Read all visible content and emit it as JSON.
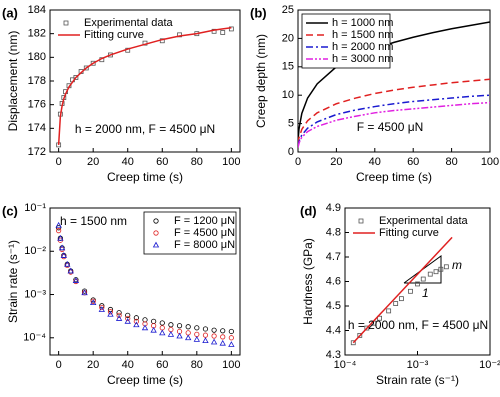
{
  "chart_data": [
    {
      "type": "line",
      "panel_label": "(a)",
      "xlabel": "Creep time (s)",
      "ylabel": "Displacement (nm)",
      "note": "h = 2000 nm, F = 4500 μN",
      "x": [
        0,
        1,
        2,
        3,
        4,
        6,
        8,
        10,
        13,
        16,
        20,
        25,
        30,
        40,
        50,
        60,
        70,
        80,
        90,
        95,
        100
      ],
      "series": [
        {
          "name": "Experimental data",
          "color": "#555555",
          "style": "markers",
          "marker": "square",
          "values": [
            172.6,
            175.2,
            176.1,
            176.6,
            177.1,
            177.6,
            178.1,
            178.3,
            178.8,
            179.1,
            179.5,
            179.8,
            180.2,
            180.6,
            181.2,
            181.4,
            181.9,
            182.0,
            182.2,
            182.1,
            182.4
          ]
        },
        {
          "name": "Fitting curve",
          "color": "#e02020",
          "style": "line",
          "values": [
            172.6,
            175.0,
            175.9,
            176.5,
            176.9,
            177.5,
            177.9,
            178.3,
            178.7,
            179.1,
            179.5,
            179.9,
            180.2,
            180.7,
            181.1,
            181.5,
            181.8,
            182.0,
            182.3,
            182.4,
            182.5
          ]
        }
      ],
      "xlim": [
        -5,
        105
      ],
      "xticks": [
        0,
        20,
        40,
        60,
        80,
        100
      ],
      "ylim": [
        172,
        184
      ],
      "yticks": [
        172,
        174,
        176,
        178,
        180,
        182,
        184
      ],
      "legend": "upper left",
      "legend_frame": false
    },
    {
      "type": "line",
      "panel_label": "(b)",
      "xlabel": "Creep time (s)",
      "ylabel": "Creep depth (nm)",
      "note": "F = 4500 μN",
      "x": [
        0,
        0.5,
        1,
        2,
        5,
        10,
        20,
        30,
        40,
        50,
        60,
        70,
        80,
        90,
        100
      ],
      "series": [
        {
          "name": "h = 1000 nm",
          "color": "#000000",
          "style": "line",
          "dash": "none",
          "values": [
            2,
            4,
            5,
            6.8,
            9.5,
            12,
            15,
            16.8,
            18.2,
            19.3,
            20.2,
            21,
            21.7,
            22.3,
            22.9
          ]
        },
        {
          "name": "h = 1500 nm",
          "color": "#e02020",
          "style": "line",
          "dash": "7,4",
          "values": [
            1.5,
            2.5,
            3,
            4,
            5.5,
            6.9,
            8.5,
            9.5,
            10.3,
            10.9,
            11.4,
            11.8,
            12.2,
            12.5,
            12.8
          ]
        },
        {
          "name": "h = 2000 nm",
          "color": "#1a1ad0",
          "style": "line",
          "dash": "7,3,2,3",
          "values": [
            1,
            1.8,
            2.3,
            3,
            4.2,
            5.3,
            6.6,
            7.4,
            8,
            8.5,
            8.9,
            9.2,
            9.5,
            9.8,
            10
          ]
        },
        {
          "name": "h = 3000 nm",
          "color": "#e020e0",
          "style": "line",
          "dash": "7,2,2,2,2,2",
          "values": [
            0.8,
            1.5,
            2,
            2.6,
            3.6,
            4.5,
            5.6,
            6.3,
            6.9,
            7.3,
            7.6,
            7.9,
            8.2,
            8.5,
            8.7
          ]
        }
      ],
      "xlim": [
        0,
        100
      ],
      "xticks": [
        0,
        20,
        40,
        60,
        80,
        100
      ],
      "ylim": [
        0,
        25
      ],
      "yticks": [
        0,
        5,
        10,
        15,
        20,
        25
      ],
      "legend": "upper left",
      "legend_frame": true
    },
    {
      "type": "scatter",
      "panel_label": "(c)",
      "xlabel": "Creep time (s)",
      "ylabel": "Strain rate (s⁻¹)",
      "note": "h = 1500 nm",
      "ylog": true,
      "x": [
        0,
        1,
        2,
        3,
        5,
        7,
        10,
        15,
        20,
        25,
        30,
        35,
        40,
        45,
        50,
        55,
        60,
        65,
        70,
        75,
        80,
        85,
        90,
        95,
        100
      ],
      "series": [
        {
          "name": "F = 1200 μN",
          "color": "#000000",
          "style": "markers",
          "marker": "circle",
          "values": [
            0.035,
            0.02,
            0.012,
            0.008,
            0.005,
            0.0035,
            0.0022,
            0.0012,
            0.00075,
            0.00055,
            0.00045,
            0.00038,
            0.00033,
            0.00029,
            0.00026,
            0.00024,
            0.00022,
            0.0002,
            0.00019,
            0.00018,
            0.00017,
            0.00016,
            0.00015,
            0.000145,
            0.00014
          ]
        },
        {
          "name": "F = 4500 μN",
          "color": "#e02020",
          "style": "markers",
          "marker": "circle",
          "values": [
            0.03,
            0.018,
            0.011,
            0.0075,
            0.0047,
            0.0033,
            0.002,
            0.0011,
            0.0007,
            0.0005,
            0.0004,
            0.00033,
            0.00028,
            0.00024,
            0.00021,
            0.00019,
            0.00017,
            0.000155,
            0.00014,
            0.00013,
            0.00012,
            0.000115,
            0.00011,
            0.000105,
            0.0001
          ]
        },
        {
          "name": "F = 8000 μN",
          "color": "#1a1ad0",
          "style": "markers",
          "marker": "triangle",
          "values": [
            0.04,
            0.02,
            0.012,
            0.008,
            0.005,
            0.0035,
            0.0021,
            0.0011,
            0.00065,
            0.00045,
            0.00035,
            0.00028,
            0.00024,
            0.0002,
            0.00017,
            0.00015,
            0.00013,
            0.00012,
            0.00011,
            0.0001,
            9.2e-05,
            8.6e-05,
            8e-05,
            7.5e-05,
            7e-05
          ]
        }
      ],
      "xlim": [
        -5,
        105
      ],
      "xticks": [
        0,
        20,
        40,
        60,
        80,
        100
      ],
      "ylim": [
        4e-05,
        0.1
      ],
      "yticks": [
        {
          "value": 0.0001,
          "label": "10⁻⁴"
        },
        {
          "value": 0.001,
          "label": "10⁻³"
        },
        {
          "value": 0.01,
          "label": "10⁻²"
        },
        {
          "value": 0.1,
          "label": "10⁻¹"
        }
      ],
      "legend": "upper right",
      "legend_frame": true
    },
    {
      "type": "line",
      "panel_label": "(d)",
      "xlabel": "Strain rate (s⁻¹)",
      "ylabel": "Hardness (GPa)",
      "note": "h = 2000 nm, F = 4500 μN",
      "annotations": [
        "m",
        "1"
      ],
      "xlog": true,
      "series": [
        {
          "name": "Experimental data",
          "color": "#555555",
          "style": "markers",
          "marker": "square",
          "x": [
            0.00013,
            0.00016,
            0.0002,
            0.00025,
            0.0003,
            0.0004,
            0.0005,
            0.0006,
            0.0008,
            0.001,
            0.0012,
            0.0015,
            0.0018,
            0.0021,
            0.0025
          ],
          "values": [
            4.35,
            4.38,
            4.41,
            4.43,
            4.45,
            4.48,
            4.51,
            4.53,
            4.56,
            4.59,
            4.61,
            4.63,
            4.64,
            4.65,
            4.66
          ]
        },
        {
          "name": "Fitting curve",
          "color": "#e02020",
          "style": "line",
          "x": [
            0.00013,
            0.003
          ],
          "values": [
            4.35,
            4.78
          ]
        }
      ],
      "xlim": [
        0.0001,
        0.01
      ],
      "xticks": [
        {
          "value": 0.0001,
          "label": "10⁻⁴"
        },
        {
          "value": 0.001,
          "label": "10⁻³"
        },
        {
          "value": 0.01,
          "label": "10⁻²"
        }
      ],
      "ylim": [
        4.3,
        4.9
      ],
      "yticks": [
        4.3,
        4.4,
        4.5,
        4.6,
        4.7,
        4.8,
        4.9
      ],
      "legend": "upper left",
      "legend_frame": false
    }
  ]
}
